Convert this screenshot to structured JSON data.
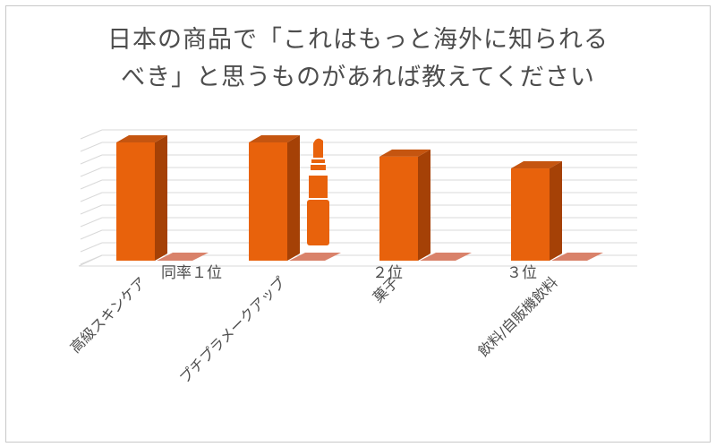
{
  "chart_data": {
    "type": "bar",
    "title": "日本の商品で「これはもっと海外に知られるべき」と思うものがあれば教えてください",
    "title_lines": [
      "日本の商品で「これはもっと海外に知られる",
      "べき」と思うものがあれば教えてください"
    ],
    "categories": [
      "高級スキンケア",
      "プチプラメークアップ",
      "菓子",
      "飲料/自販機飲料"
    ],
    "values": [
      100,
      100,
      88,
      78
    ],
    "rank_labels": [
      "同率１位",
      "２位",
      "３位"
    ],
    "grid": true,
    "style": "3d-bar",
    "colors": {
      "bar_front": "#e8620c",
      "bar_side": "#a54106",
      "bar_top": "#c55510",
      "shadow": "#d9826a",
      "grid": "#d9d9d9",
      "text": "#4d4d4d",
      "lipstick": "#e8620c"
    },
    "decoration": "lipstick-icon"
  }
}
